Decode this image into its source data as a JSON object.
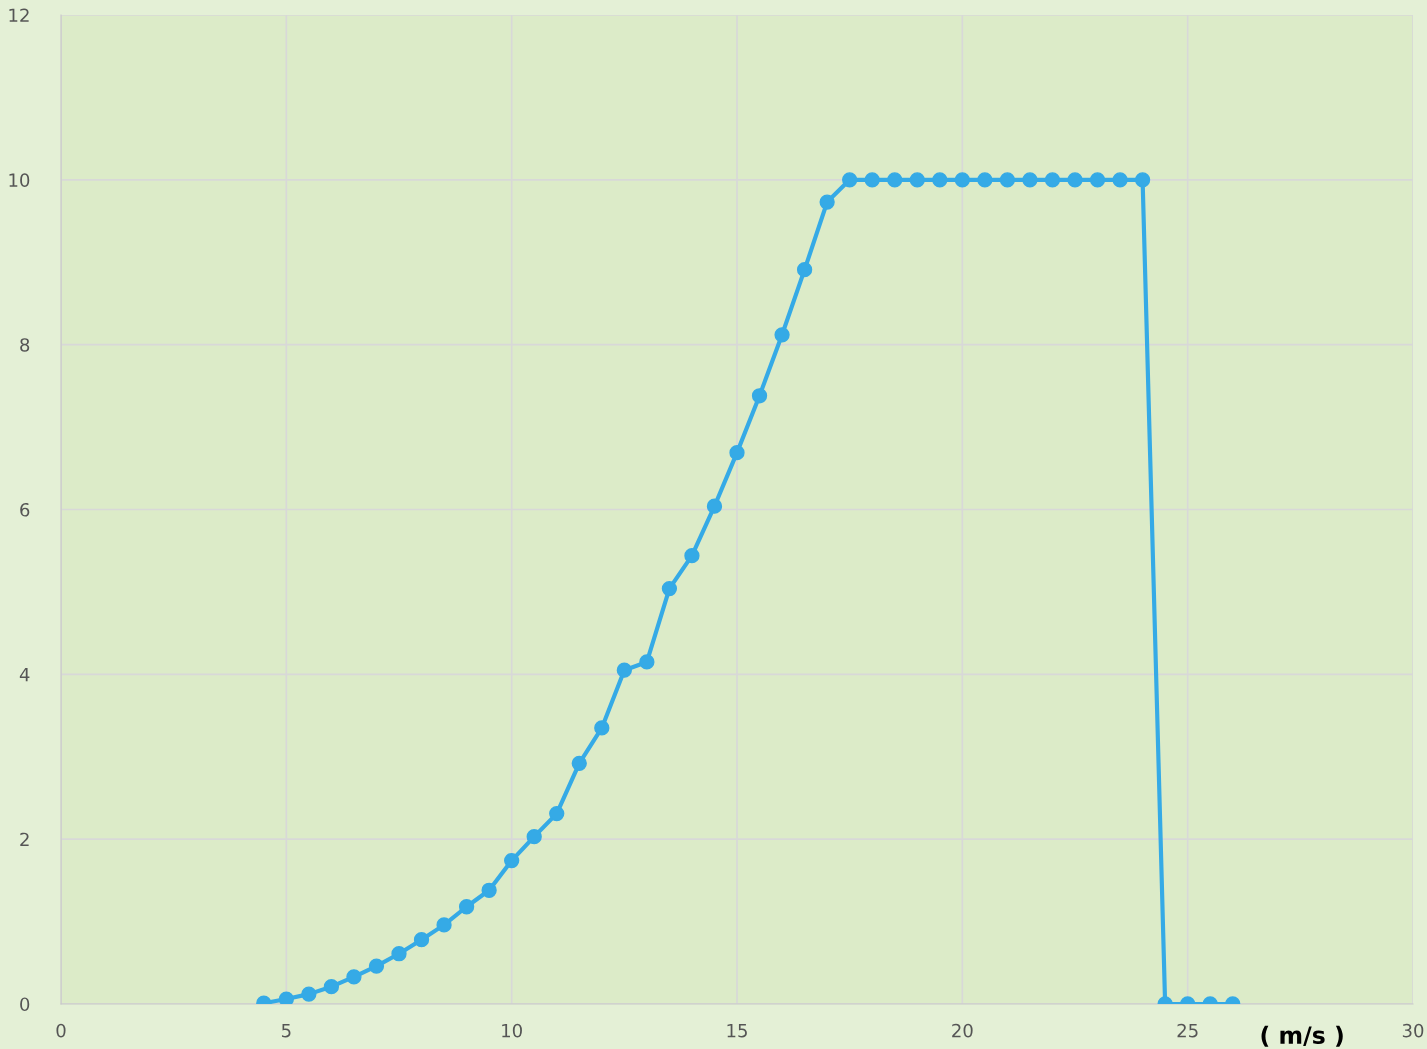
{
  "chart_data": {
    "type": "line",
    "xlabel": "( m/s )",
    "x": [
      4.5,
      5,
      5.5,
      6,
      6.5,
      7,
      7.5,
      8,
      8.5,
      9,
      9.5,
      10,
      10.5,
      11,
      11.5,
      12,
      12.5,
      13,
      13.5,
      14,
      14.5,
      15,
      15.5,
      16,
      16.5,
      17,
      17.5,
      18,
      18.5,
      19,
      19.5,
      20,
      20.5,
      21,
      21.5,
      22,
      22.5,
      23,
      23.5,
      24,
      24.5,
      25,
      25.5,
      26
    ],
    "series": [
      {
        "color": "#35aae6",
        "values": [
          0.01,
          0.06,
          0.12,
          0.21,
          0.33,
          0.46,
          0.61,
          0.78,
          0.96,
          1.18,
          1.38,
          1.74,
          2.03,
          2.31,
          2.92,
          3.35,
          4.05,
          4.15,
          5.04,
          5.44,
          6.04,
          6.69,
          7.38,
          8.12,
          8.91,
          9.73,
          10,
          10,
          10,
          10,
          10,
          10,
          10,
          10,
          10,
          10,
          10,
          10,
          10,
          10,
          0,
          0,
          0,
          0
        ]
      }
    ],
    "xlim": [
      0,
      30
    ],
    "xticks": [
      0,
      5,
      10,
      15,
      20,
      25,
      30
    ],
    "ylim": [
      0,
      12
    ],
    "yticks": [
      0,
      2,
      4,
      6,
      8,
      10,
      12
    ],
    "grid": true,
    "marker": "circle",
    "line_style": "solid"
  }
}
